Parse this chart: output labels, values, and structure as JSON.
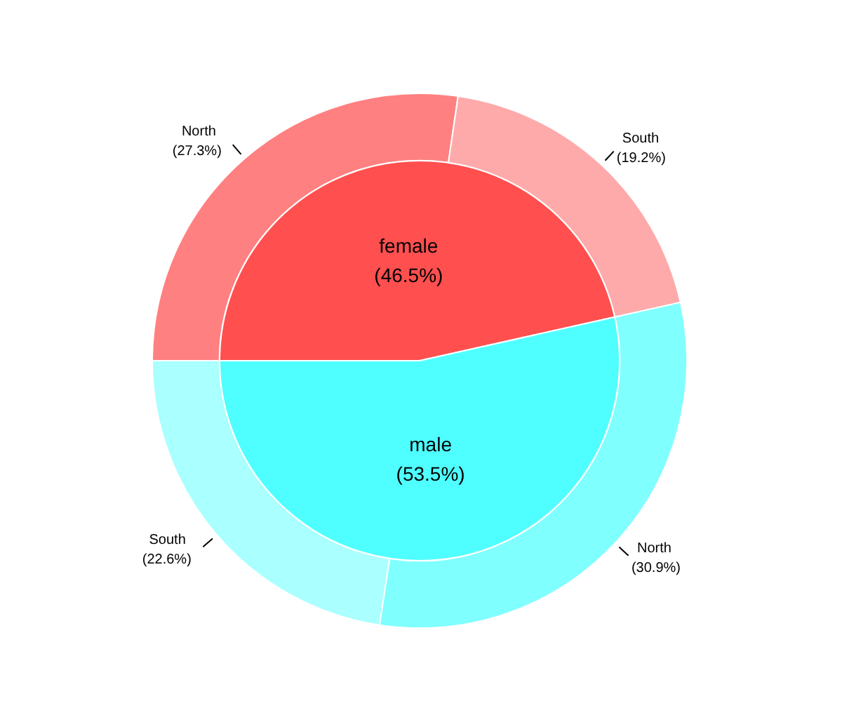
{
  "chart_data": [
    {
      "type": "donut",
      "categories": [
        "North",
        "South",
        "North",
        "South"
      ],
      "values": [
        27.3,
        19.2,
        30.9,
        22.6
      ],
      "colors": [
        "#ff8080",
        "#ffaaaa",
        "#80ffff",
        "#aaffff"
      ],
      "value_labels": [
        "(27.3%)",
        "(19.2%)",
        "(30.9%)",
        "(22.6%)"
      ]
    },
    {
      "type": "pie",
      "categories": [
        "female",
        "male"
      ],
      "values": [
        46.5,
        53.5
      ],
      "colors": [
        "#ff4f4f",
        "#4fffff"
      ],
      "value_labels": [
        "(46.5%)",
        "(53.5%)"
      ]
    }
  ]
}
